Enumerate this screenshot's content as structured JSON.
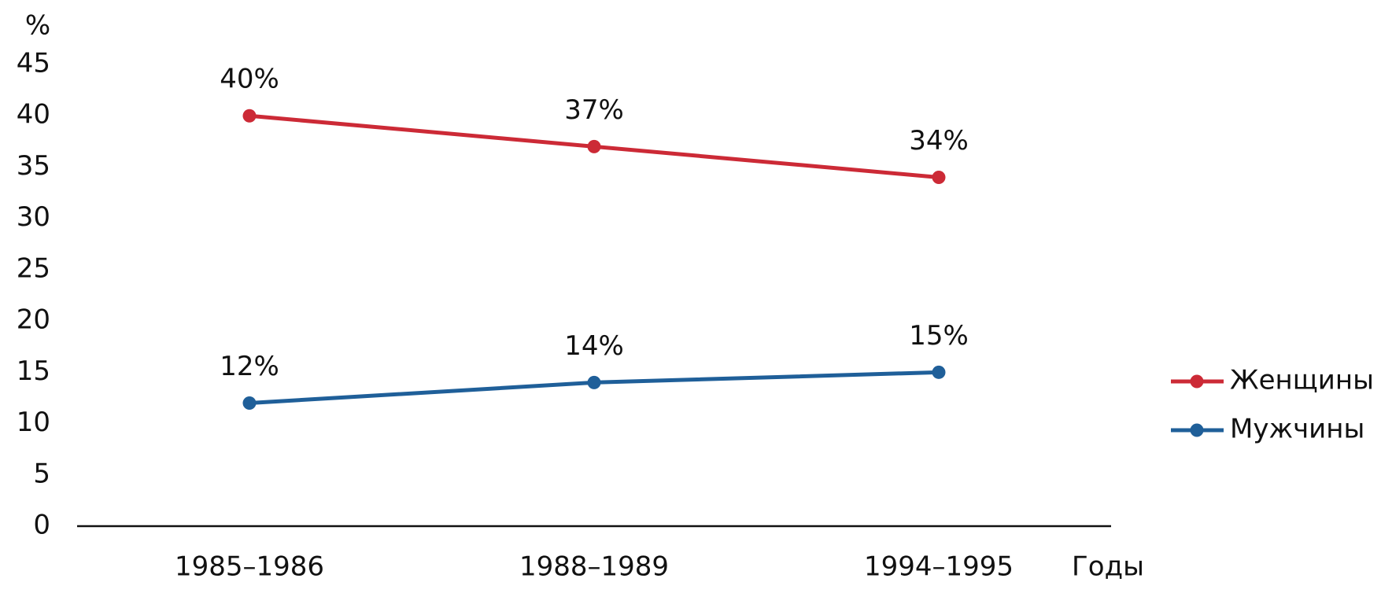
{
  "chart_data": {
    "type": "line",
    "y_label": "%",
    "x_label": "Годы",
    "categories": [
      "1985–1986",
      "1988–1989",
      "1994–1995"
    ],
    "series": [
      {
        "name": "Женщины",
        "color": "#cc2a36",
        "values": [
          40,
          37,
          34
        ],
        "value_labels": [
          "40%",
          "37%",
          "34%"
        ]
      },
      {
        "name": "Мужчины",
        "color": "#1f5f99",
        "values": [
          12,
          14,
          15
        ],
        "value_labels": [
          "12%",
          "14%",
          "15%"
        ]
      }
    ],
    "ylim": [
      0,
      45
    ],
    "yticks": [
      0,
      5,
      10,
      15,
      20,
      25,
      30,
      35,
      40,
      45
    ],
    "grid": false,
    "legend": "right"
  }
}
